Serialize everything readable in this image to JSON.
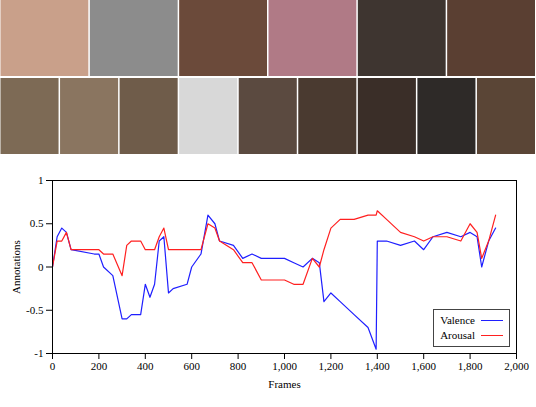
{
  "chart_data": {
    "type": "line",
    "xlabel": "Frames",
    "ylabel": "Annotations",
    "x": [
      0,
      20,
      40,
      60,
      80,
      180,
      200,
      220,
      260,
      300,
      320,
      340,
      380,
      400,
      420,
      440,
      460,
      480,
      500,
      520,
      580,
      600,
      640,
      670,
      700,
      720,
      780,
      820,
      860,
      900,
      1000,
      1040,
      1080,
      1120,
      1150,
      1170,
      1200,
      1240,
      1300,
      1360,
      1395,
      1400,
      1440,
      1500,
      1560,
      1600,
      1640,
      1700,
      1760,
      1800,
      1830,
      1850,
      1880,
      1910
    ],
    "series": [
      {
        "name": "Valence",
        "color": "#1f1fff",
        "values": [
          0,
          0.35,
          0.45,
          0.4,
          0.2,
          0.15,
          0.15,
          0,
          -0.1,
          -0.6,
          -0.6,
          -0.55,
          -0.55,
          -0.2,
          -0.35,
          -0.2,
          0.3,
          0.35,
          -0.3,
          -0.25,
          -0.2,
          0,
          0.15,
          0.6,
          0.5,
          0.3,
          0.25,
          0.1,
          0.15,
          0.1,
          0.1,
          0.05,
          0,
          0.1,
          0.05,
          -0.4,
          -0.3,
          -0.4,
          -0.55,
          -0.7,
          -0.95,
          0.3,
          0.3,
          0.25,
          0.3,
          0.2,
          0.35,
          0.4,
          0.35,
          0.4,
          0.35,
          0,
          0.3,
          0.45
        ]
      },
      {
        "name": "Arousal",
        "color": "#ff2020",
        "values": [
          0,
          0.3,
          0.3,
          0.4,
          0.2,
          0.2,
          0.2,
          0.15,
          0.15,
          -0.1,
          0.25,
          0.3,
          0.3,
          0.2,
          0.2,
          0.2,
          0.35,
          0.45,
          0.2,
          0.2,
          0.2,
          0.2,
          0.2,
          0.5,
          0.45,
          0.3,
          0.2,
          0.05,
          0.05,
          -0.15,
          -0.15,
          -0.2,
          -0.2,
          0.1,
          0,
          0.2,
          0.45,
          0.55,
          0.55,
          0.6,
          0.6,
          0.65,
          0.55,
          0.4,
          0.35,
          0.3,
          0.35,
          0.35,
          0.3,
          0.5,
          0.4,
          0.1,
          0.3,
          0.6
        ]
      }
    ],
    "xlim": [
      0,
      2000
    ],
    "xticks": [
      0,
      200,
      400,
      600,
      800,
      {
        "value": 1000,
        "label": "1,000"
      },
      {
        "value": 1200,
        "label": "1,200"
      },
      {
        "value": 1400,
        "label": "1,400"
      },
      {
        "value": 1600,
        "label": "1,600"
      },
      {
        "value": 1800,
        "label": "1,800"
      },
      {
        "value": 2000,
        "label": "2,000"
      }
    ],
    "ylim": [
      -1,
      1
    ],
    "yticks": [
      -1,
      -0.5,
      0,
      0.5,
      1
    ],
    "grid": false,
    "legend": "lower right"
  }
}
